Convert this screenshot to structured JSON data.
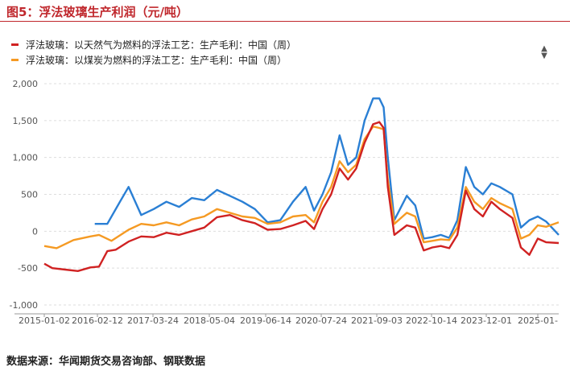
{
  "header": {
    "title": "图5：浮法玻璃生产利润（元/吨）"
  },
  "footer": {
    "source": "数据来源：华闻期货交易咨询部、钢联数据"
  },
  "colors": {
    "title": "#c0282d",
    "series_gas": "#d02222",
    "series_coal": "#f59a23",
    "series_blue": "#2a7fd4",
    "grid": "#dddddd"
  },
  "chart_data": {
    "type": "line",
    "ylim": [
      -1000,
      2000
    ],
    "yticks": [
      2000,
      1500,
      1000,
      500,
      0,
      -500,
      -1000
    ],
    "ytick_labels": [
      "2,000",
      "1,500",
      "1,000",
      "500",
      "0",
      "-500",
      "-1,000"
    ],
    "xticks": [
      "2015-01-02",
      "2016-02-12",
      "2017-03-24",
      "2018-05-04",
      "2019-06-14",
      "2020-07-24",
      "2021-09-03",
      "2022-10-14",
      "2023-12-01",
      "2025-01-"
    ],
    "grid": true,
    "legend_position": "top-left",
    "series": [
      {
        "name": "浮法玻璃：以天然气为燃料的浮法工艺：生产毛利：中国（周）",
        "color": "#d02222",
        "points": [
          [
            "2015-01-02",
            -440
          ],
          [
            "2015-03-01",
            -500
          ],
          [
            "2015-06-01",
            -520
          ],
          [
            "2015-09-01",
            -540
          ],
          [
            "2015-12-01",
            -490
          ],
          [
            "2016-02-01",
            -480
          ],
          [
            "2016-04-01",
            -270
          ],
          [
            "2016-06-01",
            -250
          ],
          [
            "2016-09-01",
            -140
          ],
          [
            "2016-12-01",
            -70
          ],
          [
            "2017-03-01",
            -80
          ],
          [
            "2017-06-01",
            -20
          ],
          [
            "2017-09-01",
            -50
          ],
          [
            "2017-12-01",
            0
          ],
          [
            "2018-03-01",
            50
          ],
          [
            "2018-06-01",
            190
          ],
          [
            "2018-09-01",
            220
          ],
          [
            "2018-12-01",
            150
          ],
          [
            "2019-03-01",
            110
          ],
          [
            "2019-06-01",
            20
          ],
          [
            "2019-09-01",
            30
          ],
          [
            "2019-12-01",
            80
          ],
          [
            "2020-03-01",
            140
          ],
          [
            "2020-05-01",
            30
          ],
          [
            "2020-07-01",
            300
          ],
          [
            "2020-09-01",
            500
          ],
          [
            "2020-11-01",
            850
          ],
          [
            "2021-01-01",
            700
          ],
          [
            "2021-03-01",
            850
          ],
          [
            "2021-05-01",
            1200
          ],
          [
            "2021-07-01",
            1450
          ],
          [
            "2021-08-15",
            1480
          ],
          [
            "2021-09-15",
            1400
          ],
          [
            "2021-10-15",
            600
          ],
          [
            "2021-12-01",
            -50
          ],
          [
            "2022-03-01",
            80
          ],
          [
            "2022-05-01",
            50
          ],
          [
            "2022-07-01",
            -260
          ],
          [
            "2022-09-01",
            -220
          ],
          [
            "2022-11-01",
            -200
          ],
          [
            "2023-01-01",
            -230
          ],
          [
            "2023-03-01",
            -50
          ],
          [
            "2023-05-01",
            550
          ],
          [
            "2023-07-01",
            300
          ],
          [
            "2023-09-01",
            200
          ],
          [
            "2023-11-01",
            400
          ],
          [
            "2024-01-01",
            300
          ],
          [
            "2024-04-01",
            180
          ],
          [
            "2024-06-01",
            -220
          ],
          [
            "2024-08-01",
            -320
          ],
          [
            "2024-10-01",
            -100
          ],
          [
            "2024-12-01",
            -150
          ],
          [
            "2025-03-01",
            -160
          ]
        ]
      },
      {
        "name": "浮法玻璃：以煤炭为燃料的浮法工艺：生产毛利：中国（周）",
        "color": "#f59a23",
        "points": [
          [
            "2015-01-02",
            -200
          ],
          [
            "2015-04-01",
            -230
          ],
          [
            "2015-08-01",
            -120
          ],
          [
            "2015-12-01",
            -70
          ],
          [
            "2016-02-01",
            -50
          ],
          [
            "2016-05-01",
            -130
          ],
          [
            "2016-09-01",
            20
          ],
          [
            "2016-12-01",
            100
          ],
          [
            "2017-03-01",
            80
          ],
          [
            "2017-06-01",
            120
          ],
          [
            "2017-09-01",
            80
          ],
          [
            "2017-12-01",
            160
          ],
          [
            "2018-03-01",
            200
          ],
          [
            "2018-06-01",
            300
          ],
          [
            "2018-09-01",
            250
          ],
          [
            "2018-12-01",
            200
          ],
          [
            "2019-03-01",
            180
          ],
          [
            "2019-06-01",
            100
          ],
          [
            "2019-09-01",
            120
          ],
          [
            "2019-12-01",
            200
          ],
          [
            "2020-03-01",
            220
          ],
          [
            "2020-05-01",
            120
          ],
          [
            "2020-07-01",
            400
          ],
          [
            "2020-09-01",
            600
          ],
          [
            "2020-11-01",
            950
          ],
          [
            "2021-01-01",
            800
          ],
          [
            "2021-03-01",
            900
          ],
          [
            "2021-05-01",
            1250
          ],
          [
            "2021-07-01",
            1420
          ],
          [
            "2021-08-15",
            1400
          ],
          [
            "2021-09-15",
            1380
          ],
          [
            "2021-10-15",
            700
          ],
          [
            "2021-12-01",
            100
          ],
          [
            "2022-03-01",
            250
          ],
          [
            "2022-05-01",
            200
          ],
          [
            "2022-07-01",
            -150
          ],
          [
            "2022-09-01",
            -130
          ],
          [
            "2022-11-01",
            -110
          ],
          [
            "2023-01-01",
            -120
          ],
          [
            "2023-03-01",
            50
          ],
          [
            "2023-05-01",
            600
          ],
          [
            "2023-07-01",
            400
          ],
          [
            "2023-09-01",
            300
          ],
          [
            "2023-11-01",
            450
          ],
          [
            "2024-01-01",
            380
          ],
          [
            "2024-04-01",
            300
          ],
          [
            "2024-06-01",
            -100
          ],
          [
            "2024-08-01",
            -50
          ],
          [
            "2024-10-01",
            80
          ],
          [
            "2024-12-01",
            60
          ],
          [
            "2025-03-01",
            120
          ]
        ]
      },
      {
        "name": "",
        "color": "#2a7fd4",
        "points": [
          [
            "2016-01-01",
            100
          ],
          [
            "2016-04-01",
            100
          ],
          [
            "2016-07-01",
            400
          ],
          [
            "2016-09-01",
            600
          ],
          [
            "2016-12-01",
            220
          ],
          [
            "2017-03-01",
            300
          ],
          [
            "2017-06-01",
            400
          ],
          [
            "2017-09-01",
            330
          ],
          [
            "2017-12-01",
            450
          ],
          [
            "2018-03-01",
            420
          ],
          [
            "2018-06-01",
            560
          ],
          [
            "2018-09-01",
            480
          ],
          [
            "2018-12-01",
            400
          ],
          [
            "2019-03-01",
            300
          ],
          [
            "2019-06-01",
            120
          ],
          [
            "2019-09-01",
            150
          ],
          [
            "2019-12-01",
            400
          ],
          [
            "2020-03-01",
            600
          ],
          [
            "2020-05-01",
            280
          ],
          [
            "2020-07-01",
            500
          ],
          [
            "2020-09-01",
            800
          ],
          [
            "2020-11-01",
            1300
          ],
          [
            "2021-01-01",
            900
          ],
          [
            "2021-03-01",
            1000
          ],
          [
            "2021-05-01",
            1500
          ],
          [
            "2021-07-01",
            1800
          ],
          [
            "2021-08-15",
            1800
          ],
          [
            "2021-09-15",
            1680
          ],
          [
            "2021-10-15",
            1000
          ],
          [
            "2021-12-01",
            150
          ],
          [
            "2022-03-01",
            480
          ],
          [
            "2022-05-01",
            350
          ],
          [
            "2022-07-01",
            -100
          ],
          [
            "2022-09-01",
            -80
          ],
          [
            "2022-11-01",
            -50
          ],
          [
            "2023-01-01",
            -90
          ],
          [
            "2023-03-01",
            150
          ],
          [
            "2023-05-01",
            870
          ],
          [
            "2023-07-01",
            600
          ],
          [
            "2023-09-01",
            500
          ],
          [
            "2023-11-01",
            650
          ],
          [
            "2024-01-01",
            600
          ],
          [
            "2024-04-01",
            500
          ],
          [
            "2024-06-01",
            50
          ],
          [
            "2024-08-01",
            150
          ],
          [
            "2024-10-01",
            200
          ],
          [
            "2024-12-01",
            130
          ],
          [
            "2025-03-01",
            -50
          ]
        ]
      }
    ]
  }
}
